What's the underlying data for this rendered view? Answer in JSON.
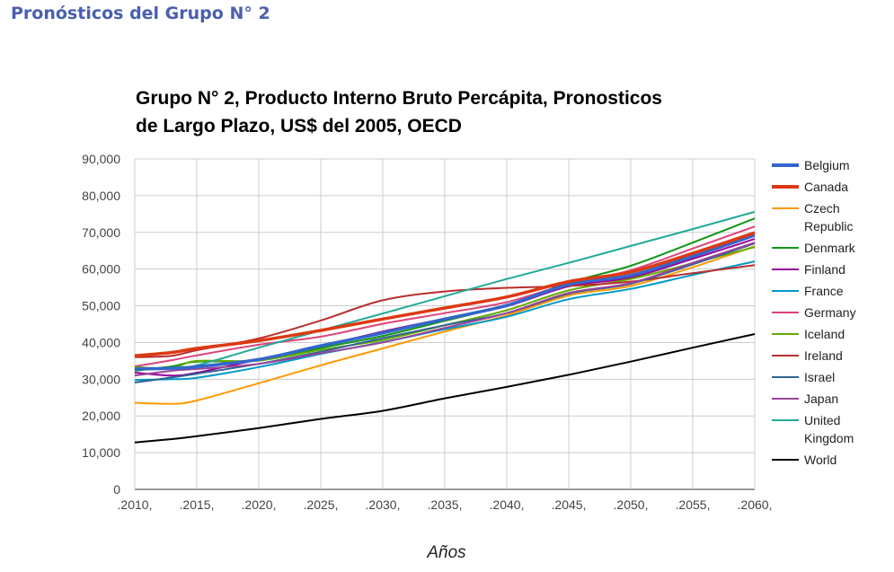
{
  "page": {
    "heading": "Pronósticos del Grupo N° 2"
  },
  "chart_data": {
    "type": "line",
    "title_lines": [
      "Grupo N° 2, Producto Interno Bruto Percápita, Pronosticos",
      "de Largo Plazo, US$ del 2005, OECD"
    ],
    "xlabel": "Años",
    "ylabel": "",
    "xlim": [
      2010,
      2060
    ],
    "ylim": [
      0,
      90000
    ],
    "grid": true,
    "legend_position": "right",
    "x_tick_labels": [
      ".2010,",
      ".2015,",
      ".2020,",
      ".2025,",
      ".2030,",
      ".2035,",
      ".2040,",
      ".2045,",
      ".2050,",
      ".2055,",
      ".2060,"
    ],
    "x_ticks": [
      2010,
      2015,
      2020,
      2025,
      2030,
      2035,
      2040,
      2045,
      2050,
      2055,
      2060
    ],
    "y_tick_labels": [
      "0",
      "10,000",
      "20,000",
      "30,000",
      "40,000",
      "50,000",
      "60,000",
      "70,000",
      "80,000",
      "90,000"
    ],
    "y_ticks": [
      0,
      10000,
      20000,
      30000,
      40000,
      50000,
      60000,
      70000,
      80000,
      90000
    ],
    "x": [
      2010,
      2013,
      2015,
      2020,
      2025,
      2030,
      2035,
      2040,
      2045,
      2050,
      2055,
      2060
    ],
    "series": [
      {
        "name": "Belgium",
        "label_lines": [
          "Belgium"
        ],
        "color": "#3366cc",
        "bold": true,
        "values": [
          32800,
          33000,
          33400,
          35400,
          39100,
          42600,
          46400,
          50100,
          55800,
          58300,
          63500,
          69200
        ]
      },
      {
        "name": "Canada",
        "label_lines": [
          "Canada"
        ],
        "color": "#dc3912",
        "bold": true,
        "values": [
          36400,
          37300,
          38400,
          40500,
          43300,
          46400,
          49400,
          52400,
          56600,
          59200,
          64300,
          69900
        ]
      },
      {
        "name": "Czech Republic",
        "label_lines": [
          "Czech",
          "Republic"
        ],
        "color": "#ff9900",
        "bold": false,
        "values": [
          23600,
          23300,
          24200,
          28900,
          33800,
          38400,
          43000,
          47400,
          52800,
          55400,
          60500,
          66200
        ]
      },
      {
        "name": "Denmark",
        "label_lines": [
          "Denmark"
        ],
        "color": "#109618",
        "bold": false,
        "values": [
          32300,
          33500,
          34800,
          35100,
          38500,
          41800,
          45900,
          50200,
          56300,
          60900,
          67200,
          73800
        ]
      },
      {
        "name": "Finland",
        "label_lines": [
          "Finland"
        ],
        "color": "#990099",
        "bold": false,
        "values": [
          31800,
          31000,
          31800,
          35400,
          39000,
          43000,
          46500,
          49900,
          55300,
          57700,
          62800,
          68200
        ]
      },
      {
        "name": "France",
        "label_lines": [
          "France"
        ],
        "color": "#0099c6",
        "bold": false,
        "values": [
          29800,
          30000,
          30400,
          33300,
          36900,
          40100,
          43600,
          47000,
          51800,
          54600,
          58400,
          62100
        ]
      },
      {
        "name": "Germany",
        "label_lines": [
          "Germany"
        ],
        "color": "#dd4477",
        "bold": false,
        "values": [
          33500,
          35200,
          36500,
          39400,
          41600,
          45100,
          48000,
          51000,
          56000,
          59700,
          65600,
          71600
        ]
      },
      {
        "name": "Iceland",
        "label_lines": [
          "Iceland"
        ],
        "color": "#66aa00",
        "bold": false,
        "values": [
          33300,
          33000,
          35000,
          35100,
          38000,
          40700,
          44700,
          48800,
          54200,
          57300,
          61600,
          66000
        ]
      },
      {
        "name": "Ireland",
        "label_lines": [
          "Ireland"
        ],
        "color": "#b82e2e",
        "bold": false,
        "values": [
          36000,
          36400,
          37900,
          41100,
          46000,
          51500,
          53900,
          54900,
          55400,
          56600,
          58900,
          61100
        ]
      },
      {
        "name": "Israel",
        "label_lines": [
          "Israel"
        ],
        "color": "#316395",
        "bold": false,
        "values": [
          29100,
          30500,
          31500,
          34200,
          37500,
          41200,
          44700,
          48000,
          53300,
          56000,
          61300,
          67000
        ]
      },
      {
        "name": "Japan",
        "label_lines": [
          "Japan"
        ],
        "color": "#994499",
        "bold": false,
        "values": [
          31000,
          32300,
          32800,
          34200,
          37100,
          40000,
          44000,
          48000,
          53500,
          56200,
          61700,
          67200
        ]
      },
      {
        "name": "United Kingdom",
        "label_lines": [
          "United",
          "Kingdom"
        ],
        "color": "#22aa99",
        "bold": false,
        "values": [
          32600,
          33000,
          33800,
          38600,
          43300,
          47900,
          52600,
          57300,
          61700,
          66300,
          70900,
          75600
        ]
      },
      {
        "name": "World",
        "label_lines": [
          "World"
        ],
        "color": "#000000",
        "bold": false,
        "values": [
          12800,
          13700,
          14500,
          16700,
          19200,
          21400,
          24800,
          27900,
          31200,
          34800,
          38600,
          42300
        ]
      }
    ]
  }
}
